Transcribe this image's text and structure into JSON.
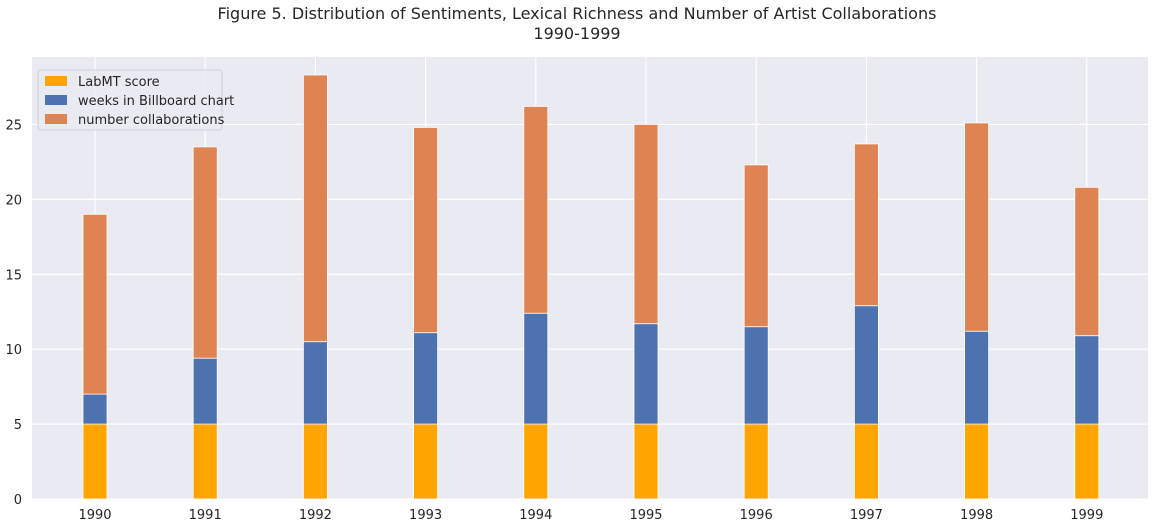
{
  "chart_data": {
    "type": "bar",
    "stacked": true,
    "title": "Figure 5. Distribution of Sentiments, Lexical Richness and Number of Artist Collaborations",
    "subtitle": "1990-1999",
    "xlabel": "",
    "ylabel": "",
    "categories": [
      "1990",
      "1991",
      "1992",
      "1993",
      "1994",
      "1995",
      "1996",
      "1997",
      "1998",
      "1999"
    ],
    "ylim": [
      0,
      29.5
    ],
    "yticks": [
      0,
      5,
      10,
      15,
      20,
      25
    ],
    "grid": true,
    "legend_position": "top-left",
    "series": [
      {
        "name": "LabMT score",
        "color": "#ffa500",
        "values": [
          5,
          5,
          5,
          5,
          5,
          5,
          5,
          5,
          5,
          5
        ]
      },
      {
        "name": "weeks in Billboard chart",
        "color": "#4c72b0",
        "values": [
          2.0,
          4.4,
          5.5,
          6.1,
          7.4,
          6.7,
          6.5,
          7.9,
          6.2,
          5.9
        ]
      },
      {
        "name": "number collaborations",
        "color": "#dd8452",
        "values": [
          12.0,
          14.1,
          17.8,
          13.7,
          13.8,
          13.3,
          10.8,
          10.8,
          13.9,
          9.9
        ]
      }
    ]
  }
}
